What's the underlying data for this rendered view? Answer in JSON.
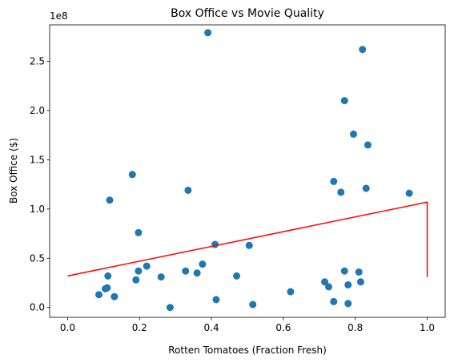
{
  "chart_data": {
    "type": "scatter",
    "title": "Box Office vs Movie Quality",
    "xlabel": "Rotten Tomatoes (Fraction Fresh)",
    "ylabel": "Box Office ($)",
    "y_offset_label": "1e8",
    "xlim": [
      -0.05,
      1.05
    ],
    "ylim": [
      -10000000,
      287000000
    ],
    "x_ticks": [
      0.0,
      0.2,
      0.4,
      0.6,
      0.8,
      1.0
    ],
    "x_tick_labels": [
      "0.0",
      "0.2",
      "0.4",
      "0.6",
      "0.8",
      "1.0"
    ],
    "y_ticks": [
      0,
      50000000,
      100000000,
      150000000,
      200000000,
      250000000
    ],
    "y_tick_labels": [
      "0.0",
      "0.5",
      "1.0",
      "1.5",
      "2.0",
      "2.5"
    ],
    "grid": false,
    "colors": {
      "points": "#1f77b4",
      "fit_line": "#ff0000"
    },
    "points": [
      {
        "x": 0.39,
        "y": 279000000
      },
      {
        "x": 0.82,
        "y": 262000000
      },
      {
        "x": 0.77,
        "y": 210000000
      },
      {
        "x": 0.795,
        "y": 176000000
      },
      {
        "x": 0.835,
        "y": 165000000
      },
      {
        "x": 0.18,
        "y": 135000000
      },
      {
        "x": 0.74,
        "y": 128000000
      },
      {
        "x": 0.83,
        "y": 121000000
      },
      {
        "x": 0.335,
        "y": 119000000
      },
      {
        "x": 0.76,
        "y": 117000000
      },
      {
        "x": 0.95,
        "y": 116000000
      },
      {
        "x": 0.117,
        "y": 109000000
      },
      {
        "x": 0.197,
        "y": 76000000
      },
      {
        "x": 0.41,
        "y": 64000000
      },
      {
        "x": 0.505,
        "y": 63000000
      },
      {
        "x": 0.375,
        "y": 44000000
      },
      {
        "x": 0.22,
        "y": 42000000
      },
      {
        "x": 0.197,
        "y": 37000000
      },
      {
        "x": 0.328,
        "y": 37000000
      },
      {
        "x": 0.77,
        "y": 37000000
      },
      {
        "x": 0.81,
        "y": 36000000
      },
      {
        "x": 0.36,
        "y": 35000000
      },
      {
        "x": 0.112,
        "y": 32000000
      },
      {
        "x": 0.26,
        "y": 31000000
      },
      {
        "x": 0.47,
        "y": 32000000
      },
      {
        "x": 0.19,
        "y": 28000000
      },
      {
        "x": 0.715,
        "y": 26000000
      },
      {
        "x": 0.815,
        "y": 26000000
      },
      {
        "x": 0.78,
        "y": 23000000
      },
      {
        "x": 0.726,
        "y": 21000000
      },
      {
        "x": 0.11,
        "y": 20000000
      },
      {
        "x": 0.105,
        "y": 19000000
      },
      {
        "x": 0.62,
        "y": 16000000
      },
      {
        "x": 0.087,
        "y": 13000000
      },
      {
        "x": 0.13,
        "y": 11000000
      },
      {
        "x": 0.413,
        "y": 8000000
      },
      {
        "x": 0.74,
        "y": 6000000
      },
      {
        "x": 0.78,
        "y": 4000000
      },
      {
        "x": 0.515,
        "y": 3000000
      },
      {
        "x": 0.285,
        "y": 0
      }
    ],
    "line": [
      {
        "x": 0.0,
        "y": 32000000
      },
      {
        "x": 1.0,
        "y": 107000000
      },
      {
        "x": 1.0,
        "y": 31000000
      }
    ]
  }
}
